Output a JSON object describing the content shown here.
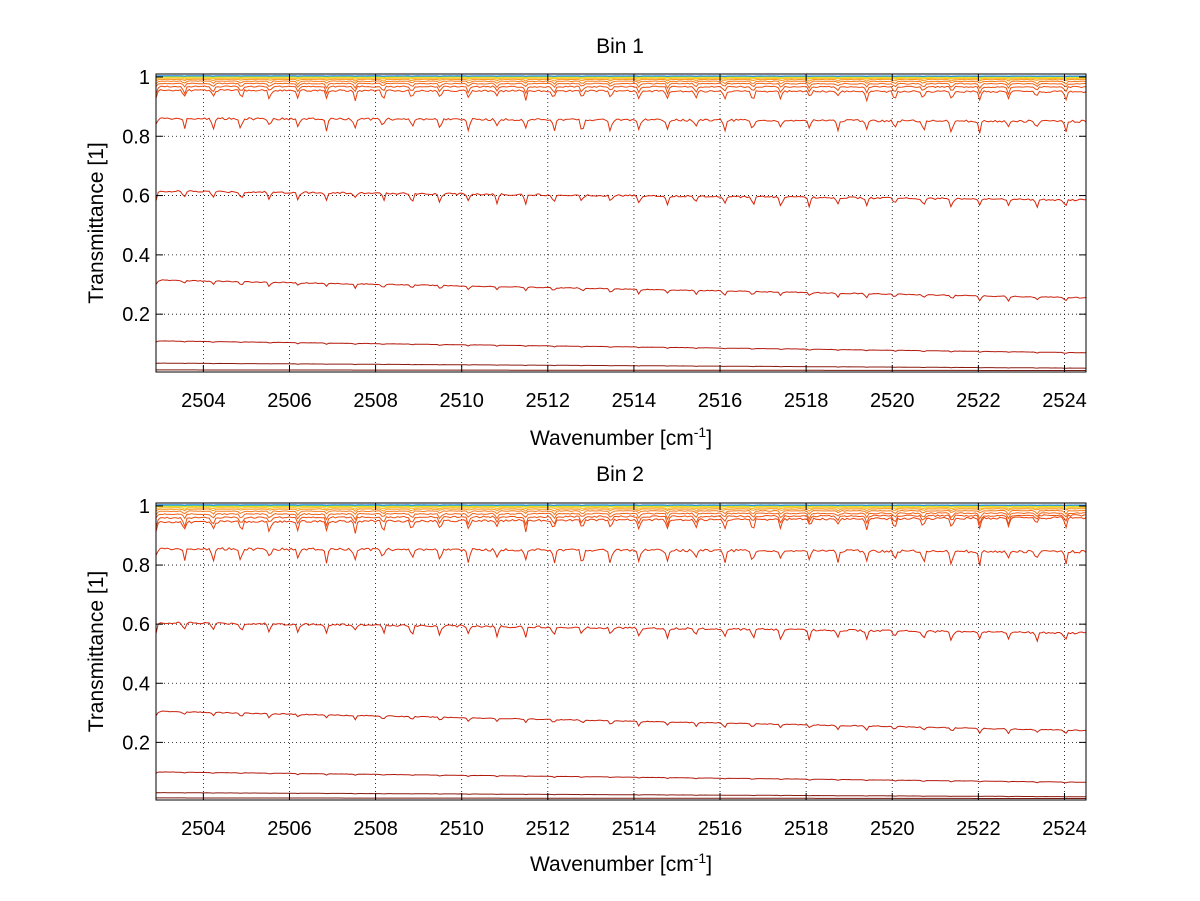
{
  "chart_data": [
    {
      "type": "line",
      "title": "Bin 1",
      "xlabel": "Wavenumber [cm",
      "xlabel_sup": "-1",
      "xlabel_end": "]",
      "ylabel": "Transmittance [1]",
      "xlim": [
        2502.9,
        2524.5
      ],
      "ylim": [
        0.005,
        1.01
      ],
      "grid": true,
      "xticks": [
        2504,
        2506,
        2508,
        2510,
        2512,
        2514,
        2516,
        2518,
        2520,
        2522,
        2524
      ],
      "yticks": [
        0.2,
        0.4,
        0.6,
        0.8,
        1
      ],
      "ytick_labels": [
        "0.2",
        "0.4",
        "0.6",
        "0.8",
        "1"
      ],
      "series": [
        {
          "color": "#7a1a10",
          "start": 0.012,
          "end": 0.01,
          "dip": 0.0
        },
        {
          "color": "#8b1a10",
          "start": 0.035,
          "end": 0.018,
          "dip": 0.001
        },
        {
          "color": "#b21a0e",
          "start": 0.11,
          "end": 0.07,
          "dip": 0.003
        },
        {
          "color": "#c8200c",
          "start": 0.315,
          "end": 0.255,
          "dip": 0.012
        },
        {
          "color": "#d8240a",
          "start": 0.615,
          "end": 0.585,
          "dip": 0.025
        },
        {
          "color": "#e0300a",
          "start": 0.86,
          "end": 0.85,
          "dip": 0.03
        },
        {
          "color": "#e8400c",
          "start": 0.955,
          "end": 0.95,
          "dip": 0.025
        },
        {
          "color": "#ec5010",
          "start": 0.968,
          "end": 0.966,
          "dip": 0.018
        },
        {
          "color": "#f06418",
          "start": 0.978,
          "end": 0.977,
          "dip": 0.012
        },
        {
          "color": "#f47a1c",
          "start": 0.986,
          "end": 0.985,
          "dip": 0.008
        },
        {
          "color": "#f89820",
          "start": 0.992,
          "end": 0.991,
          "dip": 0.005
        },
        {
          "color": "#fcb820",
          "start": 0.996,
          "end": 0.995,
          "dip": 0.003
        },
        {
          "color": "#f8d81c",
          "start": 0.999,
          "end": 0.998,
          "dip": 0.002
        },
        {
          "color": "#c8e830",
          "start": 1.001,
          "end": 1.0,
          "dip": 0.001
        },
        {
          "color": "#40c8b0",
          "start": 1.003,
          "end": 1.002,
          "dip": 0.001
        },
        {
          "color": "#2080e0",
          "start": 1.004,
          "end": 1.003,
          "dip": 0.001
        }
      ]
    },
    {
      "type": "line",
      "title": "Bin 2",
      "xlabel": "Wavenumber [cm",
      "xlabel_sup": "-1",
      "xlabel_end": "]",
      "ylabel": "Transmittance [1]",
      "xlim": [
        2502.9,
        2524.5
      ],
      "ylim": [
        0.005,
        1.01
      ],
      "grid": true,
      "xticks": [
        2504,
        2506,
        2508,
        2510,
        2512,
        2514,
        2516,
        2518,
        2520,
        2522,
        2524
      ],
      "yticks": [
        0.2,
        0.4,
        0.6,
        0.8,
        1
      ],
      "ytick_labels": [
        "0.2",
        "0.4",
        "0.6",
        "0.8",
        "1"
      ],
      "series": [
        {
          "color": "#7a1a10",
          "start": 0.012,
          "end": 0.01,
          "dip": 0.0
        },
        {
          "color": "#8b1a10",
          "start": 0.03,
          "end": 0.016,
          "dip": 0.001
        },
        {
          "color": "#b21a0e",
          "start": 0.1,
          "end": 0.065,
          "dip": 0.003
        },
        {
          "color": "#c8200c",
          "start": 0.305,
          "end": 0.24,
          "dip": 0.012
        },
        {
          "color": "#d8240a",
          "start": 0.605,
          "end": 0.57,
          "dip": 0.028
        },
        {
          "color": "#e0300a",
          "start": 0.855,
          "end": 0.845,
          "dip": 0.035
        },
        {
          "color": "#e8400c",
          "start": 0.945,
          "end": 0.96,
          "dip": 0.03
        },
        {
          "color": "#ec5010",
          "start": 0.96,
          "end": 0.968,
          "dip": 0.022
        },
        {
          "color": "#f06418",
          "start": 0.972,
          "end": 0.976,
          "dip": 0.015
        },
        {
          "color": "#f47a1c",
          "start": 0.982,
          "end": 0.984,
          "dip": 0.01
        },
        {
          "color": "#f89820",
          "start": 0.989,
          "end": 0.99,
          "dip": 0.006
        },
        {
          "color": "#fcb820",
          "start": 0.994,
          "end": 0.994,
          "dip": 0.004
        },
        {
          "color": "#f8d81c",
          "start": 0.998,
          "end": 0.998,
          "dip": 0.002
        },
        {
          "color": "#c8e830",
          "start": 1.0,
          "end": 1.0,
          "dip": 0.001
        },
        {
          "color": "#40c8b0",
          "start": 1.002,
          "end": 1.002,
          "dip": 0.001
        },
        {
          "color": "#2080e0",
          "start": 1.004,
          "end": 1.003,
          "dip": 0.001
        }
      ]
    }
  ]
}
